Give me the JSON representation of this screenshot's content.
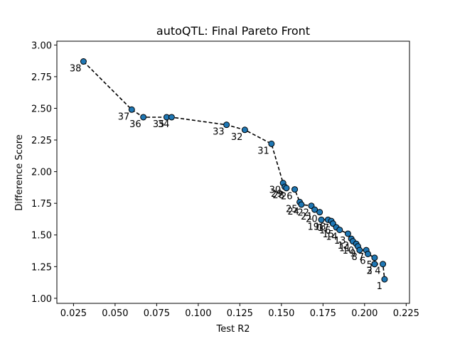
{
  "chart_data": {
    "type": "scatter",
    "title": "autoQTL: Final Pareto Front",
    "xlabel": "Test R2",
    "ylabel": "Difference Score",
    "xlim": [
      0.015,
      0.227
    ],
    "ylim": [
      0.96,
      3.03
    ],
    "xticks": [
      0.025,
      0.05,
      0.075,
      0.1,
      0.125,
      0.15,
      0.175,
      0.2,
      0.225
    ],
    "xtick_labels": [
      "0.025",
      "0.050",
      "0.075",
      "0.100",
      "0.125",
      "0.150",
      "0.175",
      "0.200",
      "0.225"
    ],
    "yticks": [
      1.0,
      1.25,
      1.5,
      1.75,
      2.0,
      2.25,
      2.5,
      2.75,
      3.0
    ],
    "ytick_labels": [
      "1.00",
      "1.25",
      "1.50",
      "1.75",
      "2.00",
      "2.25",
      "2.50",
      "2.75",
      "3.00"
    ],
    "grid": false,
    "marker_color": "#1f77b4",
    "line_style": "dashed",
    "line_color": "#000000",
    "points": [
      {
        "label": "38",
        "x": 0.031,
        "y": 2.87
      },
      {
        "label": "37",
        "x": 0.06,
        "y": 2.49
      },
      {
        "label": "36",
        "x": 0.067,
        "y": 2.43
      },
      {
        "label": "35",
        "x": 0.081,
        "y": 2.43
      },
      {
        "label": "34",
        "x": 0.084,
        "y": 2.43
      },
      {
        "label": "33",
        "x": 0.117,
        "y": 2.37
      },
      {
        "label": "32",
        "x": 0.128,
        "y": 2.33
      },
      {
        "label": "31",
        "x": 0.144,
        "y": 2.22
      },
      {
        "label": "30",
        "x": 0.151,
        "y": 1.91
      },
      {
        "label": "29",
        "x": 0.152,
        "y": 1.88
      },
      {
        "label": "28",
        "x": 0.153,
        "y": 1.87
      },
      {
        "label": "26",
        "x": 0.158,
        "y": 1.86
      },
      {
        "label": "25",
        "x": 0.161,
        "y": 1.76
      },
      {
        "label": "24",
        "x": 0.162,
        "y": 1.74
      },
      {
        "label": "22",
        "x": 0.168,
        "y": 1.73
      },
      {
        "label": "21",
        "x": 0.17,
        "y": 1.7
      },
      {
        "label": "20",
        "x": 0.173,
        "y": 1.68
      },
      {
        "label": "19",
        "x": 0.174,
        "y": 1.62
      },
      {
        "label": "18",
        "x": 0.178,
        "y": 1.62
      },
      {
        "label": "17",
        "x": 0.18,
        "y": 1.61
      },
      {
        "label": "16",
        "x": 0.181,
        "y": 1.59
      },
      {
        "label": "15",
        "x": 0.183,
        "y": 1.56
      },
      {
        "label": "14",
        "x": 0.185,
        "y": 1.54
      },
      {
        "label": "13",
        "x": 0.19,
        "y": 1.51
      },
      {
        "label": "12",
        "x": 0.192,
        "y": 1.47
      },
      {
        "label": "11",
        "x": 0.193,
        "y": 1.45
      },
      {
        "label": "10",
        "x": 0.195,
        "y": 1.43
      },
      {
        "label": "9",
        "x": 0.196,
        "y": 1.41
      },
      {
        "label": "8",
        "x": 0.197,
        "y": 1.38
      },
      {
        "label": "7",
        "x": 0.201,
        "y": 1.38
      },
      {
        "label": "6",
        "x": 0.202,
        "y": 1.35
      },
      {
        "label": "5",
        "x": 0.206,
        "y": 1.32
      },
      {
        "label": "4",
        "x": 0.211,
        "y": 1.27
      },
      {
        "label": "3",
        "x": 0.206,
        "y": 1.27
      },
      {
        "label": "2",
        "x": 0.206,
        "y": 1.27
      },
      {
        "label": "1",
        "x": 0.212,
        "y": 1.15
      }
    ],
    "line_path": [
      [
        0.031,
        2.87
      ],
      [
        0.06,
        2.49
      ],
      [
        0.067,
        2.43
      ],
      [
        0.081,
        2.43
      ],
      [
        0.084,
        2.43
      ],
      [
        0.117,
        2.37
      ],
      [
        0.128,
        2.33
      ],
      [
        0.144,
        2.22
      ],
      [
        0.151,
        1.91
      ],
      [
        0.152,
        1.88
      ],
      [
        0.153,
        1.87
      ],
      [
        0.158,
        1.86
      ],
      [
        0.161,
        1.76
      ],
      [
        0.162,
        1.74
      ],
      [
        0.168,
        1.73
      ],
      [
        0.17,
        1.7
      ],
      [
        0.173,
        1.68
      ],
      [
        0.174,
        1.62
      ],
      [
        0.178,
        1.62
      ],
      [
        0.18,
        1.61
      ],
      [
        0.181,
        1.59
      ],
      [
        0.183,
        1.56
      ],
      [
        0.185,
        1.54
      ],
      [
        0.19,
        1.51
      ],
      [
        0.192,
        1.47
      ],
      [
        0.193,
        1.45
      ],
      [
        0.195,
        1.43
      ],
      [
        0.196,
        1.41
      ],
      [
        0.197,
        1.38
      ],
      [
        0.201,
        1.38
      ],
      [
        0.202,
        1.35
      ],
      [
        0.206,
        1.32
      ],
      [
        0.206,
        1.27
      ],
      [
        0.211,
        1.27
      ],
      [
        0.212,
        1.15
      ]
    ]
  }
}
